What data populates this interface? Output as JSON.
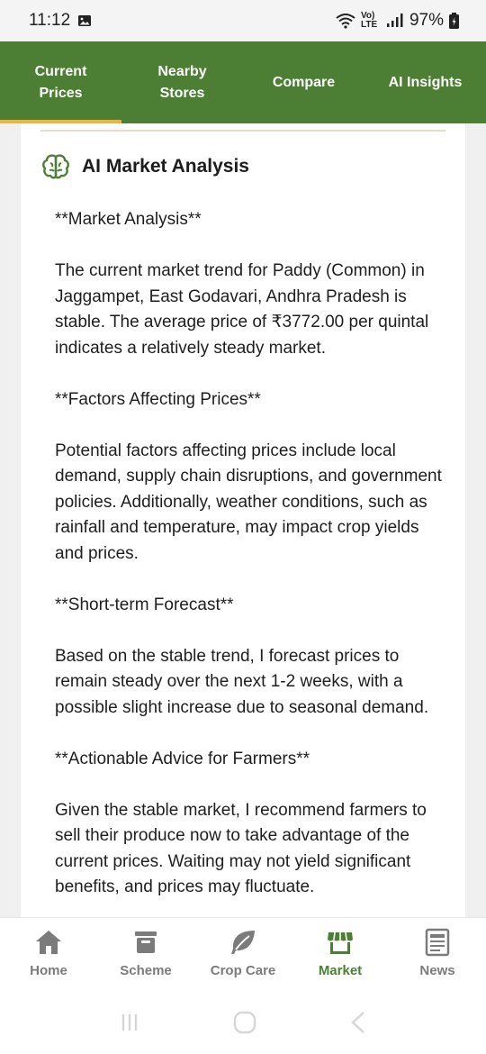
{
  "status_bar": {
    "time": "11:12",
    "network": "Vo) LTE",
    "battery": "97%"
  },
  "tabs": [
    {
      "label": "Current Prices",
      "active": true
    },
    {
      "label": "Nearby Stores",
      "active": false
    },
    {
      "label": "Compare",
      "active": false
    },
    {
      "label": "AI Insights",
      "active": false
    }
  ],
  "card": {
    "title": "AI Market Analysis",
    "icon": "brain-icon",
    "paragraphs": [
      "**Market Analysis**",
      "The current market trend for Paddy (Common) in Jaggampet, East Godavari, Andhra Pradesh is stable. The average price of ₹3772.00 per quintal indicates a relatively steady market.",
      "**Factors Affecting Prices**",
      "Potential factors affecting prices include local demand, supply chain disruptions, and government policies. Additionally, weather conditions, such as rainfall and temperature, may impact crop yields and prices.",
      "**Short-term Forecast**",
      "Based on the stable trend, I forecast prices to remain steady over the next 1-2 weeks, with a possible slight increase due to seasonal demand.",
      "**Actionable Advice for Farmers**",
      "Given the stable market, I recommend farmers to sell their produce now to take advantage of the current prices. Waiting may not yield significant benefits, and prices may fluctuate."
    ]
  },
  "bottom_nav": [
    {
      "label": "Home",
      "icon": "home-icon",
      "active": false
    },
    {
      "label": "Scheme",
      "icon": "scheme-icon",
      "active": false
    },
    {
      "label": "Crop Care",
      "icon": "leaf-icon",
      "active": false
    },
    {
      "label": "Market",
      "icon": "store-icon",
      "active": true
    },
    {
      "label": "News",
      "icon": "news-icon",
      "active": false
    }
  ],
  "colors": {
    "primary_green": "#4c7f34",
    "tab_indicator": "#f2b33d",
    "inactive_gray": "#7b7b7b"
  }
}
